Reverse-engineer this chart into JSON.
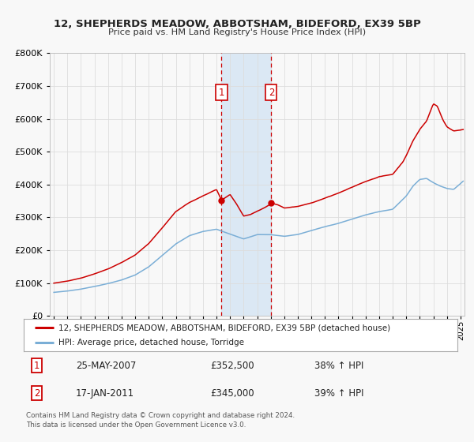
{
  "title": "12, SHEPHERDS MEADOW, ABBOTSHAM, BIDEFORD, EX39 5BP",
  "subtitle": "Price paid vs. HM Land Registry's House Price Index (HPI)",
  "hpi_label": "HPI: Average price, detached house, Torridge",
  "property_label": "12, SHEPHERDS MEADOW, ABBOTSHAM, BIDEFORD, EX39 5BP (detached house)",
  "purchase1_date": "25-MAY-2007",
  "purchase1_price": 352500,
  "purchase1_hpi": "38% ↑ HPI",
  "purchase1_year": 2007.375,
  "purchase2_date": "17-JAN-2011",
  "purchase2_price": 345000,
  "purchase2_hpi": "39% ↑ HPI",
  "purchase2_year": 2011.042,
  "footer": "Contains HM Land Registry data © Crown copyright and database right 2024.\nThis data is licensed under the Open Government Licence v3.0.",
  "background_color": "#f8f8f8",
  "plot_background": "#f8f8f8",
  "red_color": "#cc0000",
  "blue_color": "#7aaed6",
  "highlight_color": "#dbe8f4",
  "ylim_min": 0,
  "ylim_max": 800000,
  "xlim_min": 1994.7,
  "xlim_max": 2025.3
}
